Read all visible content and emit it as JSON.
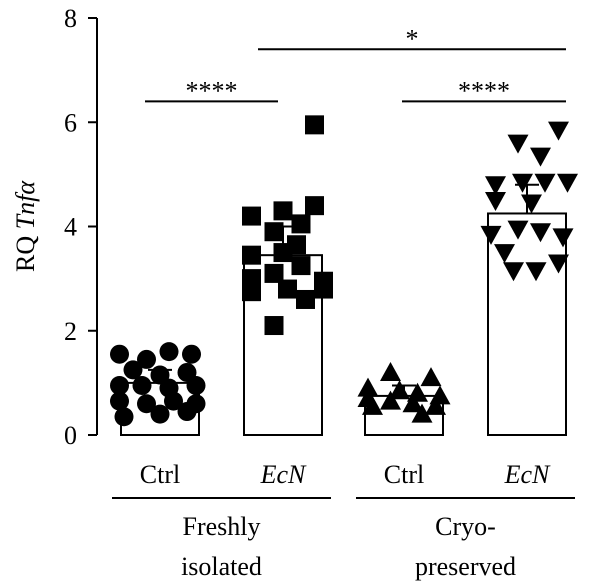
{
  "chart_data": {
    "type": "bar",
    "ylabel": "RQ",
    "ylabel_italic": "Tnfα",
    "ylim": [
      0,
      8
    ],
    "yticks": [
      "0",
      "2",
      "4",
      "6",
      "8"
    ],
    "categories": [
      "Ctrl",
      "EcN",
      "Ctrl",
      "EcN"
    ],
    "category_italic": [
      false,
      true,
      false,
      true
    ],
    "groups": [
      {
        "label_line1": "Freshly",
        "label_line2": "isolated",
        "span": [
          0,
          1
        ]
      },
      {
        "label_line1": "Cryo-",
        "label_line2": "preserved",
        "span": [
          2,
          3
        ]
      }
    ],
    "bars": [
      {
        "mean": 1.0,
        "sd_high": 1.25,
        "marker": "circle",
        "points": [
          {
            "x": -0.45,
            "y": 1.55
          },
          {
            "x": -0.15,
            "y": 1.45
          },
          {
            "x": 0.1,
            "y": 1.6
          },
          {
            "x": 0.35,
            "y": 1.55
          },
          {
            "x": -0.3,
            "y": 1.25
          },
          {
            "x": 0.0,
            "y": 1.15
          },
          {
            "x": 0.3,
            "y": 1.2
          },
          {
            "x": -0.45,
            "y": 0.95
          },
          {
            "x": -0.2,
            "y": 0.95
          },
          {
            "x": 0.1,
            "y": 0.9
          },
          {
            "x": 0.4,
            "y": 0.95
          },
          {
            "x": -0.45,
            "y": 0.65
          },
          {
            "x": -0.15,
            "y": 0.6
          },
          {
            "x": 0.15,
            "y": 0.65
          },
          {
            "x": 0.4,
            "y": 0.6
          },
          {
            "x": -0.4,
            "y": 0.35
          },
          {
            "x": 0.0,
            "y": 0.4
          },
          {
            "x": 0.3,
            "y": 0.45
          }
        ]
      },
      {
        "mean": 3.45,
        "sd_high": 4.0,
        "marker": "square",
        "points": [
          {
            "x": 0.35,
            "y": 5.95
          },
          {
            "x": -0.35,
            "y": 4.2
          },
          {
            "x": 0.0,
            "y": 4.3
          },
          {
            "x": 0.35,
            "y": 4.4
          },
          {
            "x": 0.2,
            "y": 4.05
          },
          {
            "x": -0.1,
            "y": 3.9
          },
          {
            "x": 0.15,
            "y": 3.65
          },
          {
            "x": -0.35,
            "y": 3.45
          },
          {
            "x": 0.0,
            "y": 3.5
          },
          {
            "x": 0.2,
            "y": 3.25
          },
          {
            "x": -0.35,
            "y": 3.0
          },
          {
            "x": -0.1,
            "y": 3.1
          },
          {
            "x": 0.45,
            "y": 2.95
          },
          {
            "x": -0.35,
            "y": 2.75
          },
          {
            "x": 0.05,
            "y": 2.8
          },
          {
            "x": 0.25,
            "y": 2.6
          },
          {
            "x": 0.45,
            "y": 2.8
          },
          {
            "x": -0.1,
            "y": 2.1
          }
        ]
      },
      {
        "mean": 0.75,
        "sd_high": 0.95,
        "marker": "triangle-up",
        "points": [
          {
            "x": -0.15,
            "y": 1.2
          },
          {
            "x": -0.4,
            "y": 0.9
          },
          {
            "x": 0.3,
            "y": 1.1
          },
          {
            "x": -0.05,
            "y": 0.85
          },
          {
            "x": 0.15,
            "y": 0.8
          },
          {
            "x": 0.4,
            "y": 0.75
          },
          {
            "x": -0.4,
            "y": 0.7
          },
          {
            "x": -0.15,
            "y": 0.65
          },
          {
            "x": 0.1,
            "y": 0.6
          },
          {
            "x": 0.35,
            "y": 0.55
          },
          {
            "x": -0.35,
            "y": 0.55
          },
          {
            "x": 0.2,
            "y": 0.4
          }
        ]
      },
      {
        "mean": 4.25,
        "sd_high": 4.8,
        "marker": "triangle-down",
        "points": [
          {
            "x": 0.35,
            "y": 5.85
          },
          {
            "x": -0.1,
            "y": 5.6
          },
          {
            "x": 0.15,
            "y": 5.35
          },
          {
            "x": -0.35,
            "y": 4.8
          },
          {
            "x": -0.05,
            "y": 4.85
          },
          {
            "x": 0.2,
            "y": 4.85
          },
          {
            "x": 0.45,
            "y": 4.85
          },
          {
            "x": -0.35,
            "y": 4.5
          },
          {
            "x": 0.05,
            "y": 4.45
          },
          {
            "x": -0.4,
            "y": 3.85
          },
          {
            "x": -0.1,
            "y": 3.95
          },
          {
            "x": 0.15,
            "y": 3.9
          },
          {
            "x": 0.4,
            "y": 3.8
          },
          {
            "x": -0.25,
            "y": 3.5
          },
          {
            "x": 0.35,
            "y": 3.3
          },
          {
            "x": -0.15,
            "y": 3.15
          },
          {
            "x": 0.1,
            "y": 3.15
          }
        ]
      }
    ],
    "significance": [
      {
        "from": 0,
        "to": 1,
        "y": 6.4,
        "label": "****"
      },
      {
        "from": 1,
        "to": 3,
        "y": 7.4,
        "label": "*"
      },
      {
        "from": 2,
        "to": 3,
        "y": 6.4,
        "label": "****"
      }
    ],
    "grid": false,
    "legend": "none"
  }
}
